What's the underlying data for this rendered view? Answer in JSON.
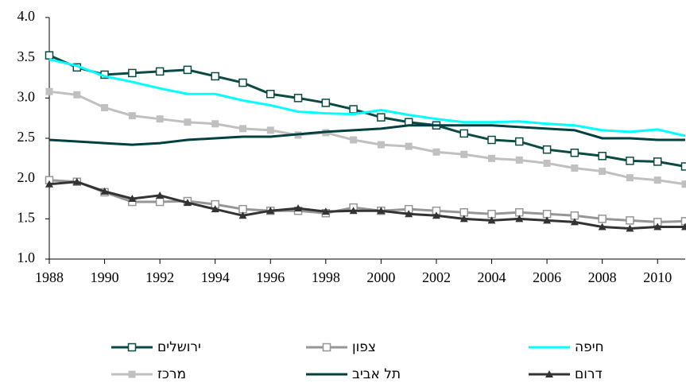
{
  "chart_data": {
    "type": "line",
    "x": [
      1988,
      1989,
      1990,
      1991,
      1992,
      1993,
      1994,
      1995,
      1996,
      1997,
      1998,
      1999,
      2000,
      2001,
      2002,
      2003,
      2004,
      2005,
      2006,
      2007,
      2008,
      2009,
      2010,
      2011
    ],
    "xlim": [
      1988,
      2011
    ],
    "xticks": [
      1988,
      1990,
      1992,
      1994,
      1996,
      1998,
      2000,
      2002,
      2004,
      2006,
      2008,
      2010
    ],
    "ylim": [
      1,
      4
    ],
    "yticks": [
      {
        "value": 1,
        "label": "1.0"
      },
      {
        "value": 1.5,
        "label": "1.5"
      },
      {
        "value": 2,
        "label": "2.0"
      },
      {
        "value": 2.5,
        "label": "2.5"
      },
      {
        "value": 3,
        "label": "3.0"
      },
      {
        "value": 3.5,
        "label": "3.5"
      },
      {
        "value": 4,
        "label": "4.0"
      }
    ],
    "grid": false,
    "legend": "bottom",
    "series": [
      {
        "name": "ירושלים",
        "color": "#0b4a42",
        "marker": "square-open",
        "values": [
          3.53,
          3.38,
          3.29,
          3.31,
          3.33,
          3.35,
          3.27,
          3.19,
          3.05,
          3.0,
          2.94,
          2.86,
          2.76,
          2.7,
          2.66,
          2.56,
          2.48,
          2.46,
          2.36,
          2.32,
          2.28,
          2.22,
          2.21,
          2.15
        ]
      },
      {
        "name": "צפון",
        "color": "#969696",
        "marker": "square-open",
        "values": [
          1.98,
          1.96,
          1.83,
          1.71,
          1.71,
          1.72,
          1.68,
          1.62,
          1.6,
          1.6,
          1.57,
          1.64,
          1.6,
          1.62,
          1.6,
          1.58,
          1.56,
          1.58,
          1.56,
          1.54,
          1.5,
          1.48,
          1.46,
          1.47
        ]
      },
      {
        "name": "חיפה",
        "color": "#00ffff",
        "marker": "none",
        "values": [
          3.48,
          3.4,
          3.27,
          3.2,
          3.12,
          3.05,
          3.05,
          2.97,
          2.91,
          2.83,
          2.81,
          2.8,
          2.85,
          2.79,
          2.74,
          2.7,
          2.7,
          2.71,
          2.68,
          2.66,
          2.6,
          2.58,
          2.61,
          2.53
        ]
      },
      {
        "name": "מרכז",
        "color": "#c0c0c0",
        "marker": "square",
        "values": [
          3.08,
          3.04,
          2.88,
          2.78,
          2.74,
          2.7,
          2.68,
          2.62,
          2.6,
          2.54,
          2.57,
          2.48,
          2.42,
          2.4,
          2.33,
          2.3,
          2.25,
          2.23,
          2.19,
          2.13,
          2.09,
          2.01,
          1.98,
          1.93
        ]
      },
      {
        "name": "תל אביב",
        "color": "#004040",
        "marker": "none",
        "values": [
          2.48,
          2.46,
          2.44,
          2.42,
          2.44,
          2.48,
          2.5,
          2.52,
          2.52,
          2.55,
          2.58,
          2.6,
          2.62,
          2.66,
          2.66,
          2.66,
          2.66,
          2.64,
          2.62,
          2.6,
          2.5,
          2.5,
          2.48,
          2.48
        ]
      },
      {
        "name": "דרום",
        "color": "#333333",
        "marker": "triangle",
        "values": [
          1.93,
          1.96,
          1.84,
          1.75,
          1.79,
          1.7,
          1.62,
          1.54,
          1.6,
          1.63,
          1.59,
          1.6,
          1.6,
          1.56,
          1.54,
          1.5,
          1.48,
          1.5,
          1.48,
          1.46,
          1.4,
          1.38,
          1.4,
          1.4
        ]
      }
    ]
  }
}
